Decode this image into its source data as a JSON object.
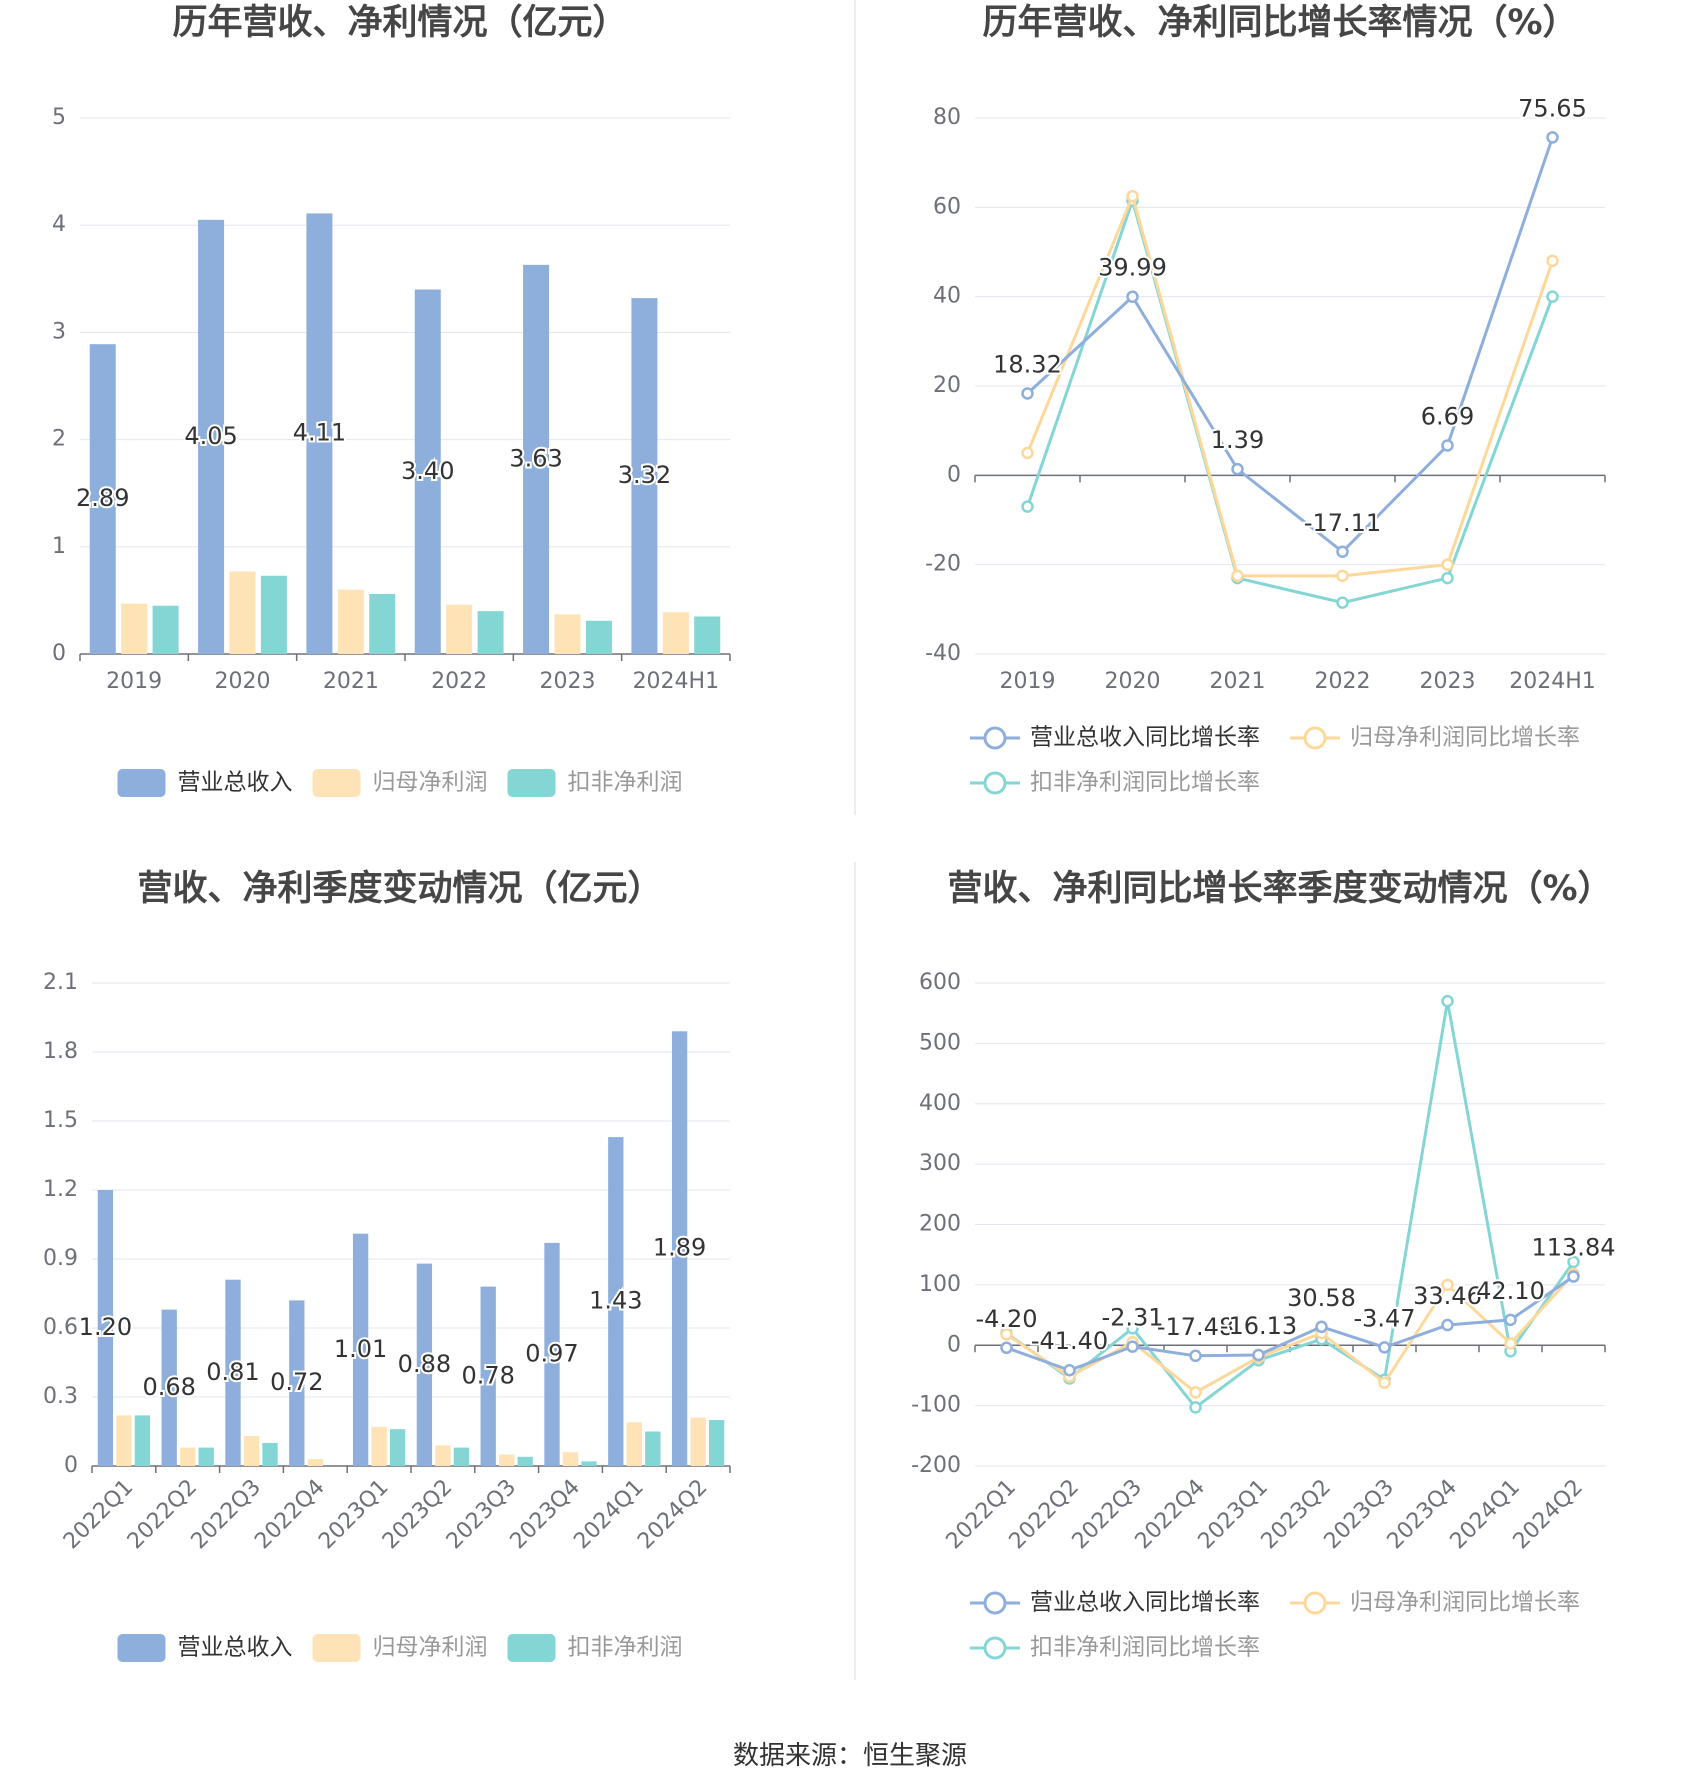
{
  "colors": {
    "revenue": "#8EAEDC",
    "net": "#FDE3B6",
    "deducted": "#84D6D4",
    "revenue_line": "#8EAEDC",
    "net_line": "#FDD89A",
    "deducted_line": "#84D6D4",
    "grid": "#E2E6F0",
    "axis": "#6E7079",
    "label": "#333333",
    "title": "#464646"
  },
  "chart_data": [
    {
      "id": "annual-bar",
      "type": "bar",
      "title": "历年营收、净利情况（亿元）",
      "categories": [
        "2019",
        "2020",
        "2021",
        "2022",
        "2023",
        "2024H1"
      ],
      "y_ticks": [
        "0",
        "1",
        "2",
        "3",
        "4",
        "5"
      ],
      "ylim": [
        0,
        5
      ],
      "series": [
        {
          "name": "营业总收入",
          "color_key": "revenue",
          "values": [
            2.89,
            4.05,
            4.11,
            3.4,
            3.63,
            3.32
          ],
          "labels": [
            "2.89",
            "4.05",
            "4.11",
            "3.40",
            "3.63",
            "3.32"
          ]
        },
        {
          "name": "归母净利润",
          "color_key": "net",
          "values": [
            0.47,
            0.77,
            0.6,
            0.46,
            0.37,
            0.39
          ]
        },
        {
          "name": "扣非净利润",
          "color_key": "deducted",
          "values": [
            0.45,
            0.73,
            0.56,
            0.4,
            0.31,
            0.35
          ]
        }
      ],
      "legend": [
        "营业总收入",
        "归母净利润",
        "扣非净利润"
      ],
      "legend_position": "bottom"
    },
    {
      "id": "annual-line",
      "type": "line",
      "title": "历年营收、净利同比增长率情况（%）",
      "categories": [
        "2019",
        "2020",
        "2021",
        "2022",
        "2023",
        "2024H1"
      ],
      "y_ticks": [
        "-40",
        "-20",
        "0",
        "20",
        "40",
        "60",
        "80"
      ],
      "ylim": [
        -40,
        80
      ],
      "series": [
        {
          "name": "营业总收入同比增长率",
          "color_key": "revenue_line",
          "values": [
            18.32,
            39.99,
            1.39,
            -17.11,
            6.69,
            75.65
          ],
          "labels": [
            "18.32",
            "39.99",
            "1.39",
            "-17.11",
            "6.69",
            "75.65"
          ]
        },
        {
          "name": "归母净利润同比增长率",
          "color_key": "net_line",
          "values": [
            5.0,
            62.5,
            -22.5,
            -22.5,
            -20.0,
            48.0
          ]
        },
        {
          "name": "扣非净利润同比增长率",
          "color_key": "deducted_line",
          "values": [
            -7.0,
            61.5,
            -23.0,
            -28.5,
            -23.0,
            40.0
          ]
        }
      ],
      "legend": [
        "营业总收入同比增长率",
        "归母净利润同比增长率",
        "扣非净利润同比增长率"
      ],
      "legend_position": "bottom"
    },
    {
      "id": "quarter-bar",
      "type": "bar",
      "title": "营收、净利季度变动情况（亿元）",
      "categories": [
        "2022Q1",
        "2022Q2",
        "2022Q3",
        "2022Q4",
        "2023Q1",
        "2023Q2",
        "2023Q3",
        "2023Q4",
        "2024Q1",
        "2024Q2"
      ],
      "y_ticks": [
        "0",
        "0.3",
        "0.6",
        "0.9",
        "1.2",
        "1.5",
        "1.8",
        "2.1"
      ],
      "ylim": [
        0,
        2.1
      ],
      "series": [
        {
          "name": "营业总收入",
          "color_key": "revenue",
          "values": [
            1.2,
            0.68,
            0.81,
            0.72,
            1.01,
            0.88,
            0.78,
            0.97,
            1.43,
            1.89
          ],
          "labels": [
            "1.20",
            "0.68",
            "0.81",
            "0.72",
            "1.01",
            "0.88",
            "0.78",
            "0.97",
            "1.43",
            "1.89"
          ]
        },
        {
          "name": "归母净利润",
          "color_key": "net",
          "values": [
            0.22,
            0.08,
            0.13,
            0.03,
            0.17,
            0.09,
            0.05,
            0.06,
            0.19,
            0.21
          ]
        },
        {
          "name": "扣非净利润",
          "color_key": "deducted",
          "values": [
            0.22,
            0.08,
            0.1,
            0.0,
            0.16,
            0.08,
            0.04,
            0.02,
            0.15,
            0.2
          ]
        }
      ],
      "legend": [
        "营业总收入",
        "归母净利润",
        "扣非净利润"
      ],
      "legend_position": "bottom"
    },
    {
      "id": "quarter-line",
      "type": "line",
      "title": "营收、净利同比增长率季度变动情况（%）",
      "categories": [
        "2022Q1",
        "2022Q2",
        "2022Q3",
        "2022Q4",
        "2023Q1",
        "2023Q2",
        "2023Q3",
        "2023Q4",
        "2024Q1",
        "2024Q2"
      ],
      "y_ticks": [
        "-200",
        "-100",
        "0",
        "100",
        "200",
        "300",
        "400",
        "500",
        "600"
      ],
      "ylim": [
        -200,
        600
      ],
      "series": [
        {
          "name": "营业总收入同比增长率",
          "color_key": "revenue_line",
          "values": [
            -4.2,
            -41.4,
            -2.31,
            -17.48,
            -16.13,
            30.58,
            -3.47,
            33.46,
            42.1,
            113.84
          ],
          "labels": [
            "-4.20",
            "-41.40",
            "-2.31",
            "-17.48",
            "-16.13",
            "30.58",
            "-3.47",
            "33.46",
            "42.10",
            "113.84"
          ]
        },
        {
          "name": "归母净利润同比增长率",
          "color_key": "net_line",
          "values": [
            18,
            -52,
            5,
            -78,
            -20,
            20,
            -62,
            100,
            3,
            118
          ]
        },
        {
          "name": "扣非净利润同比增长率",
          "color_key": "deducted_line",
          "values": [
            20,
            -55,
            28,
            -103,
            -25,
            10,
            -57,
            570,
            -10,
            138
          ]
        }
      ],
      "legend": [
        "营业总收入同比增长率",
        "归母净利润同比增长率",
        "扣非净利润同比增长率"
      ],
      "legend_position": "bottom"
    }
  ],
  "footer": {
    "source": "数据来源：恒生聚源"
  }
}
